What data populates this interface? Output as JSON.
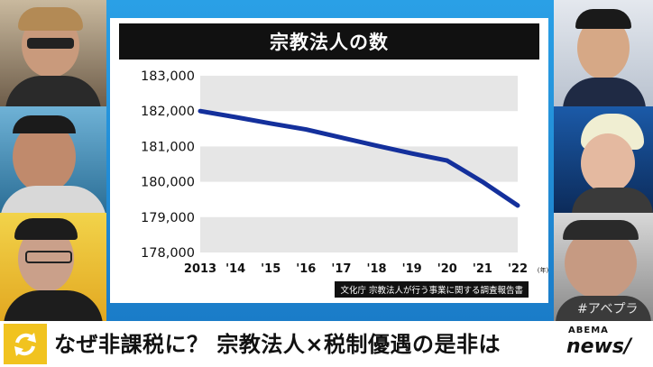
{
  "chart_data": {
    "type": "line",
    "title": "宗教法人の数",
    "x": [
      "2013",
      "'14",
      "'15",
      "'16",
      "'17",
      "'18",
      "'19",
      "'20",
      "'21",
      "'22"
    ],
    "x_unit": "(年)",
    "series": [
      {
        "values": [
          182000,
          181830,
          181650,
          181480,
          181250,
          181020,
          180800,
          180600,
          180000,
          179330
        ]
      }
    ],
    "yticks": [
      "183,000",
      "182,000",
      "181,000",
      "180,000",
      "179,000",
      "178,000"
    ],
    "ylim": [
      178000,
      183000
    ],
    "source": "文化庁  宗教法人が行う事業に関する調査報告書",
    "colors": {
      "line": "#14309c",
      "band": "#e6e6e6"
    }
  },
  "caption": {
    "text": "なぜ非課税に？ 宗教法人×税制優遇の是非は",
    "icon": "refresh-arrows-icon"
  },
  "logo": {
    "top": "ABEMA",
    "main": "news/"
  },
  "hashtag": "#アベプラ"
}
